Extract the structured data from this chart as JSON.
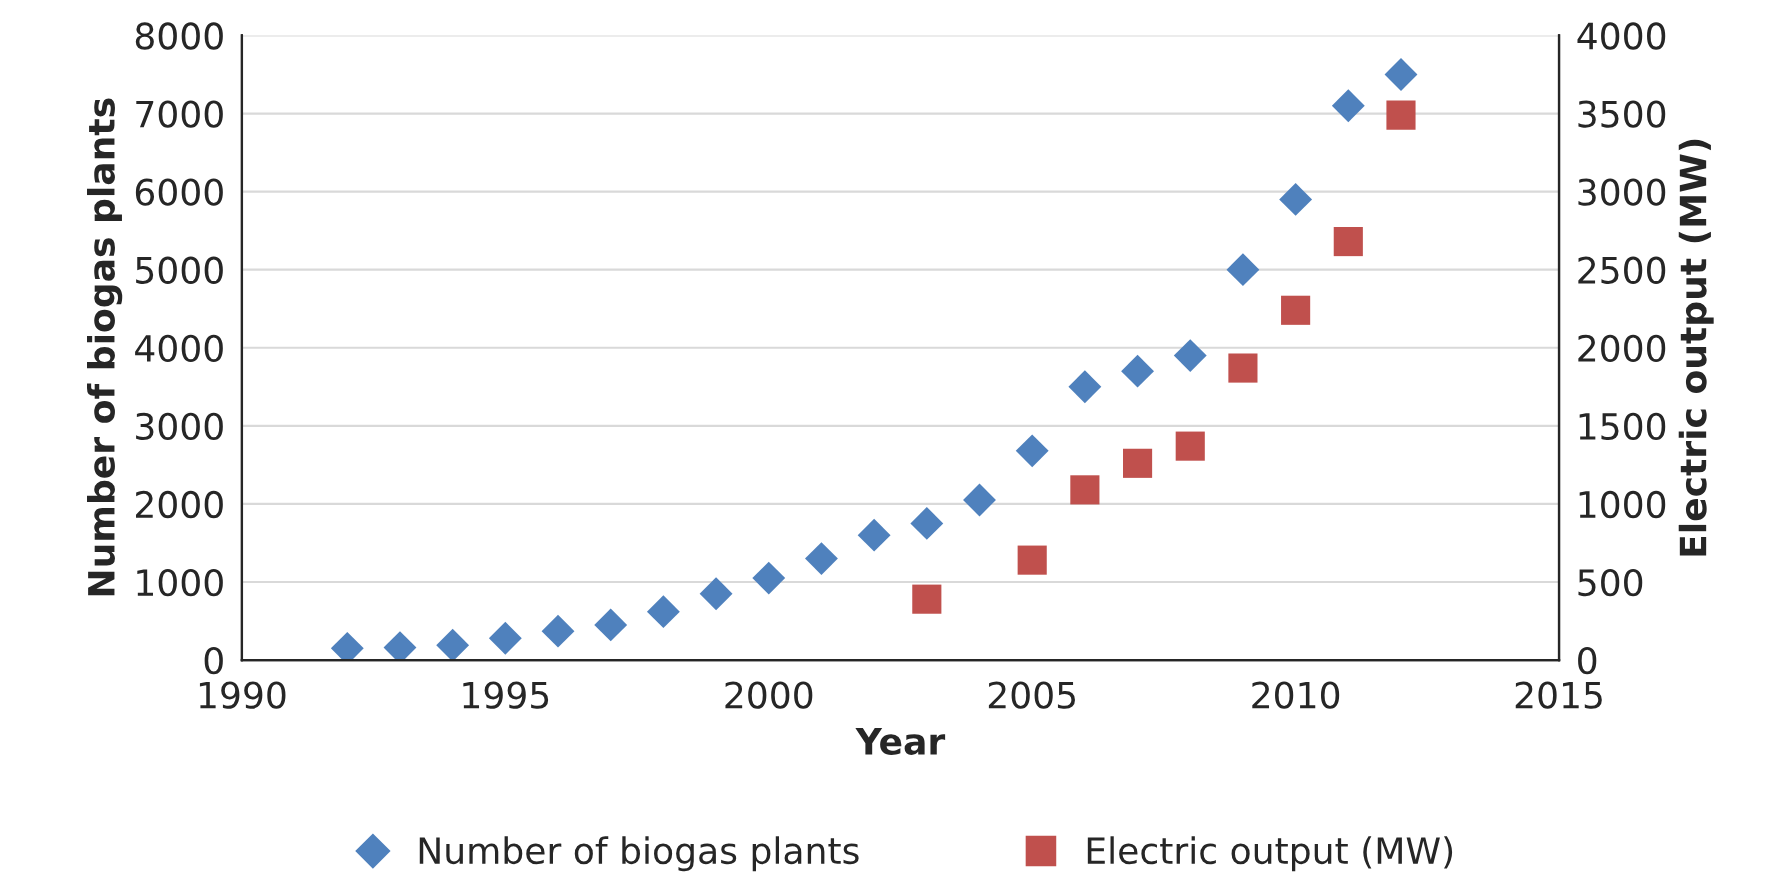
{
  "chart_data": {
    "type": "scatter",
    "xlabel": "Year",
    "ylabel": "Number of biogas plants",
    "y2label": "Electric output (MW)",
    "xlim": [
      1990,
      2015
    ],
    "xticks": [
      1990,
      1995,
      2000,
      2005,
      2010,
      2015
    ],
    "ylim": [
      0,
      8000
    ],
    "yticks": [
      0,
      1000,
      2000,
      3000,
      4000,
      5000,
      6000,
      7000,
      8000
    ],
    "y2lim": [
      0,
      4000
    ],
    "y2ticks": [
      0,
      500,
      1000,
      1500,
      2000,
      2500,
      3000,
      3500,
      4000
    ],
    "grid": "y",
    "legend": "bottom",
    "series": [
      {
        "name": "Number of biogas plants",
        "color": "#4f81bd",
        "marker": "diamond",
        "x": [
          1992,
          1993,
          1994,
          1995,
          1996,
          1997,
          1998,
          1999,
          2000,
          2001,
          2002,
          2003,
          2004,
          2005,
          2006,
          2007,
          2008,
          2009,
          2010,
          2011,
          2012
        ],
        "values": [
          150,
          160,
          190,
          280,
          370,
          450,
          620,
          850,
          1050,
          1300,
          1600,
          1750,
          2050,
          2680,
          3500,
          3700,
          3900,
          5000,
          5900,
          7100,
          7500
        ]
      },
      {
        "name": "Electric output (MW)",
        "color": "#c0504d",
        "marker": "square",
        "axis": "y2",
        "x": [
          2003,
          2005,
          2006,
          2007,
          2008,
          2009,
          2010,
          2011,
          2012
        ],
        "values": [
          390,
          640,
          1090,
          1260,
          1370,
          1870,
          2240,
          2680,
          3490
        ]
      }
    ]
  }
}
